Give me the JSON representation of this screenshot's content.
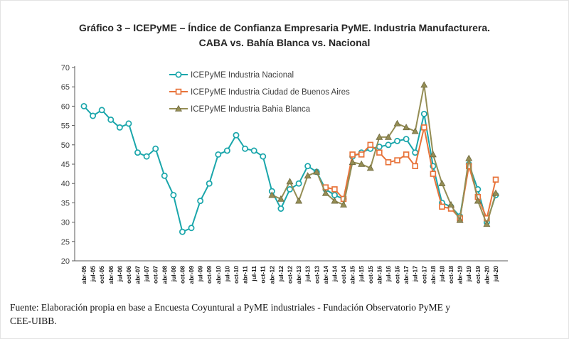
{
  "header": {
    "title_line1": "Gráfico 3 – ICEPyME – Índice de Confianza Empresaria PyME. Industria Manufacturera.",
    "title_line2": "CABA vs. Bahía Blanca vs. Nacional"
  },
  "footer": {
    "source_line1": "Fuente: Elaboración propia en base a Encuesta Coyuntural a PyME industriales - Fundación Observatorio PyME y",
    "source_line2": "CEE-UIBB."
  },
  "chart_data": {
    "type": "line",
    "title": "",
    "xlabel": "",
    "ylabel": "",
    "ylim": [
      20,
      70
    ],
    "ytick_step": 5,
    "grid": false,
    "legend_position": "top-left-inside",
    "axis_color": "#595959",
    "tick_label_color": "#404040",
    "categories": [
      "abr-05",
      "jul-05",
      "oct-05",
      "abr-06",
      "jul-06",
      "oct-06",
      "abr-07",
      "jul-07",
      "oct-07",
      "abr-08",
      "jul-08",
      "oct-08",
      "abr-09",
      "jul-09",
      "oct-09",
      "abr-10",
      "jul-10",
      "oct-10",
      "abr-11",
      "jul-11",
      "oct-11",
      "abr-12",
      "jul-12",
      "oct-12",
      "abr-13",
      "jul-13",
      "oct-13",
      "abr-14",
      "jul-14",
      "oct-14",
      "abr-15",
      "jul-15",
      "oct-15",
      "abr-16",
      "jul-16",
      "oct-16",
      "abr-17",
      "jul-17",
      "oct-17",
      "abr-18",
      "jul-18",
      "oct-18",
      "abr-19",
      "jul-19",
      "oct-19",
      "abr-20",
      "jul-20"
    ],
    "series": [
      {
        "name": "ICEPyME Industria Nacional",
        "color": "#1AA6AB",
        "marker": "circle",
        "values": [
          60,
          57.5,
          59,
          56.5,
          54.5,
          55.5,
          48,
          47,
          49,
          42,
          37,
          27.5,
          28.5,
          35.5,
          40,
          47.5,
          48.5,
          52.5,
          49,
          48.5,
          47,
          38,
          33.5,
          38.5,
          40,
          44.5,
          43,
          38.5,
          37,
          36,
          47,
          48,
          49,
          49.5,
          50,
          51,
          51.5,
          48,
          58,
          44.5,
          35,
          34,
          31.5,
          45,
          38.5,
          30,
          37
        ]
      },
      {
        "name": "ICEPyME Industria Ciudad de Buenos Aires",
        "color": "#E8733A",
        "marker": "square",
        "values": [
          null,
          null,
          null,
          null,
          null,
          null,
          null,
          null,
          null,
          null,
          null,
          null,
          null,
          null,
          null,
          null,
          null,
          null,
          null,
          null,
          null,
          null,
          null,
          null,
          null,
          null,
          null,
          39,
          38.5,
          36,
          47.5,
          47.5,
          50,
          48,
          45.5,
          46,
          47.5,
          44.5,
          54.5,
          42.5,
          34,
          33.5,
          31,
          44.5,
          36.5,
          31,
          41
        ]
      },
      {
        "name": "ICEPyME Industria Bahia Blanca",
        "color": "#948D54",
        "marker": "triangle",
        "values": [
          null,
          null,
          null,
          null,
          null,
          null,
          null,
          null,
          null,
          null,
          null,
          null,
          null,
          null,
          null,
          null,
          null,
          null,
          null,
          null,
          null,
          37,
          36,
          40.5,
          35.5,
          42,
          43,
          37.5,
          35.5,
          34.5,
          45.5,
          45,
          44,
          52,
          52,
          55.5,
          54.5,
          53.5,
          65.5,
          47.5,
          40,
          34.5,
          30.5,
          46.5,
          35.5,
          29.5,
          37.5
        ]
      }
    ]
  }
}
